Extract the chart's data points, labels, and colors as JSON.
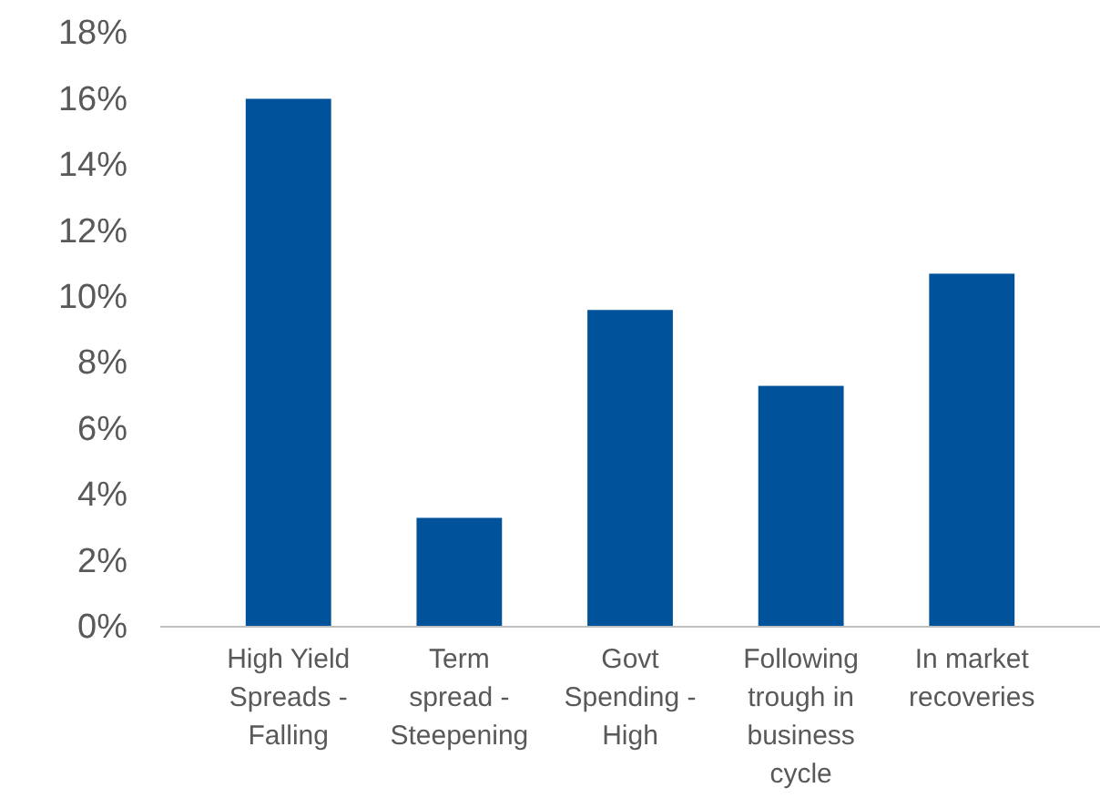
{
  "chart_data": {
    "type": "bar",
    "categories": [
      "High Yield Spreads - Falling",
      "Term spread - Steepening",
      "Govt Spending - High",
      "Following trough in business cycle",
      "In market recoveries"
    ],
    "values": [
      16,
      3.3,
      9.6,
      7.3,
      10.7
    ],
    "color": "#00539b",
    "ylim": [
      0,
      18
    ],
    "yticks": [
      {
        "value": 0,
        "label": "0%"
      },
      {
        "value": 2,
        "label": "2%"
      },
      {
        "value": 4,
        "label": "4%"
      },
      {
        "value": 6,
        "label": "6%"
      },
      {
        "value": 8,
        "label": "8%"
      },
      {
        "value": 10,
        "label": "10%"
      },
      {
        "value": 12,
        "label": "12%"
      },
      {
        "value": 14,
        "label": "14%"
      },
      {
        "value": 16,
        "label": "16%"
      },
      {
        "value": 18,
        "label": "18%"
      }
    ]
  }
}
